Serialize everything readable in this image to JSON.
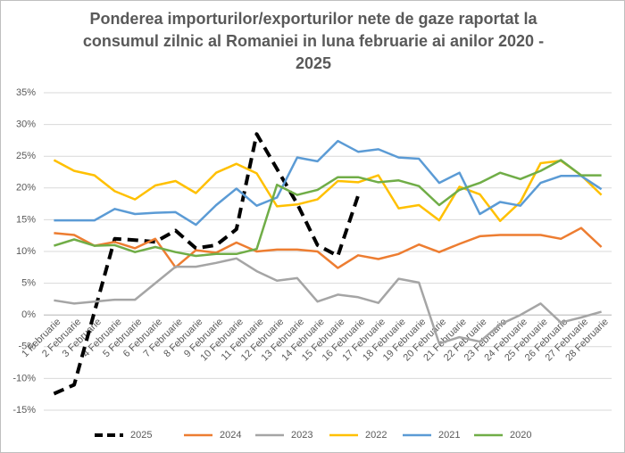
{
  "chart_data": {
    "type": "line",
    "title": "Ponderea importurilor/exporturilor nete de gaze raportat la consumul zilnic al Romaniei in luna februarie ai anilor 2020 - 2025",
    "categories": [
      "1 Februarie",
      "2 Februarie",
      "3 Februarie",
      "4 Februarie",
      "5 Februarie",
      "6 Februarie",
      "7 Februarie",
      "8 Februarie",
      "9 Februarie",
      "10 Februarie",
      "11 Februarie",
      "12 Februarie",
      "13 Februarie",
      "14 Februarie",
      "15 Februarie",
      "16 Februarie",
      "17 Februarie",
      "18 Februarie",
      "19 Februarie",
      "20 Februarie",
      "21 Februarie",
      "22 Februarie",
      "23 Februarie",
      "24 Februarie",
      "25 Februarie",
      "26 Februarie",
      "27 Februarie",
      "28 Februarie"
    ],
    "series": [
      {
        "name": "2025",
        "color": "#000000",
        "dashed": true,
        "values": [
          -12.4,
          -11,
          0.5,
          12,
          11.8,
          11.5,
          13.3,
          10.5,
          11,
          13.5,
          28.5,
          23,
          17.5,
          11,
          9.3,
          18.8,
          null,
          null,
          null,
          null,
          null,
          null,
          null,
          null,
          null,
          null,
          null,
          null
        ]
      },
      {
        "name": "2024",
        "color": "#ed7d31",
        "values": [
          12.9,
          12.6,
          10.9,
          11.5,
          10.5,
          12,
          7.5,
          10.2,
          9.8,
          11.4,
          10,
          10.3,
          10.3,
          10,
          7.4,
          9.4,
          8.8,
          9.6,
          11.1,
          9.9,
          11.2,
          12.4,
          12.6,
          12.6,
          12.6,
          12,
          13.7,
          10.7
        ]
      },
      {
        "name": "2023",
        "color": "#a5a5a5",
        "values": [
          2.3,
          1.8,
          2.1,
          2.4,
          2.4,
          5,
          7.6,
          7.6,
          8.2,
          8.9,
          6.9,
          5.4,
          5.8,
          2.1,
          3.2,
          2.8,
          1.9,
          5.7,
          5.1,
          -4.5,
          -3.5,
          -4.2,
          -1.5,
          0,
          1.8,
          -1.2,
          -0.4,
          0.5
        ]
      },
      {
        "name": "2022",
        "color": "#ffc000",
        "values": [
          24.4,
          22.7,
          22,
          19.5,
          18.2,
          20.4,
          21.1,
          19.2,
          22.4,
          23.8,
          22.3,
          17.1,
          17.4,
          18.2,
          21.1,
          20.9,
          22,
          16.8,
          17.3,
          14.9,
          20.2,
          19,
          14.8,
          17.8,
          23.9,
          24.3,
          22,
          18.9
        ]
      },
      {
        "name": "2021",
        "color": "#5b9bd5",
        "values": [
          14.9,
          14.9,
          14.9,
          16.7,
          15.9,
          16.1,
          16.2,
          14.2,
          17.3,
          19.9,
          17.2,
          18.5,
          24.8,
          24.2,
          27.4,
          25.7,
          26.1,
          24.8,
          24.6,
          20.8,
          22.4,
          15.9,
          17.8,
          17.2,
          20.8,
          21.9,
          21.9,
          19.8
        ]
      },
      {
        "name": "2020",
        "color": "#70ad47",
        "values": [
          10.9,
          11.9,
          10.9,
          11,
          9.9,
          10.7,
          9.9,
          9.3,
          9.6,
          9.6,
          10.4,
          20.5,
          18.9,
          19.7,
          21.7,
          21.7,
          20.9,
          21.2,
          20.3,
          17.3,
          19.7,
          20.8,
          22.4,
          21.4,
          22.7,
          24.4,
          22,
          22
        ]
      }
    ],
    "ylim": [
      -15,
      35
    ],
    "yticks": [
      {
        "value": -15,
        "label": "-15%"
      },
      {
        "value": -10,
        "label": "-10%"
      },
      {
        "value": -5,
        "label": "-5%"
      },
      {
        "value": 0,
        "label": "0%"
      },
      {
        "value": 5,
        "label": "5%"
      },
      {
        "value": 10,
        "label": "10%"
      },
      {
        "value": 15,
        "label": "15%"
      },
      {
        "value": 20,
        "label": "20%"
      },
      {
        "value": 25,
        "label": "25%"
      },
      {
        "value": 30,
        "label": "30%"
      },
      {
        "value": 35,
        "label": "35%"
      }
    ],
    "grid": true,
    "legend": "bottom"
  }
}
